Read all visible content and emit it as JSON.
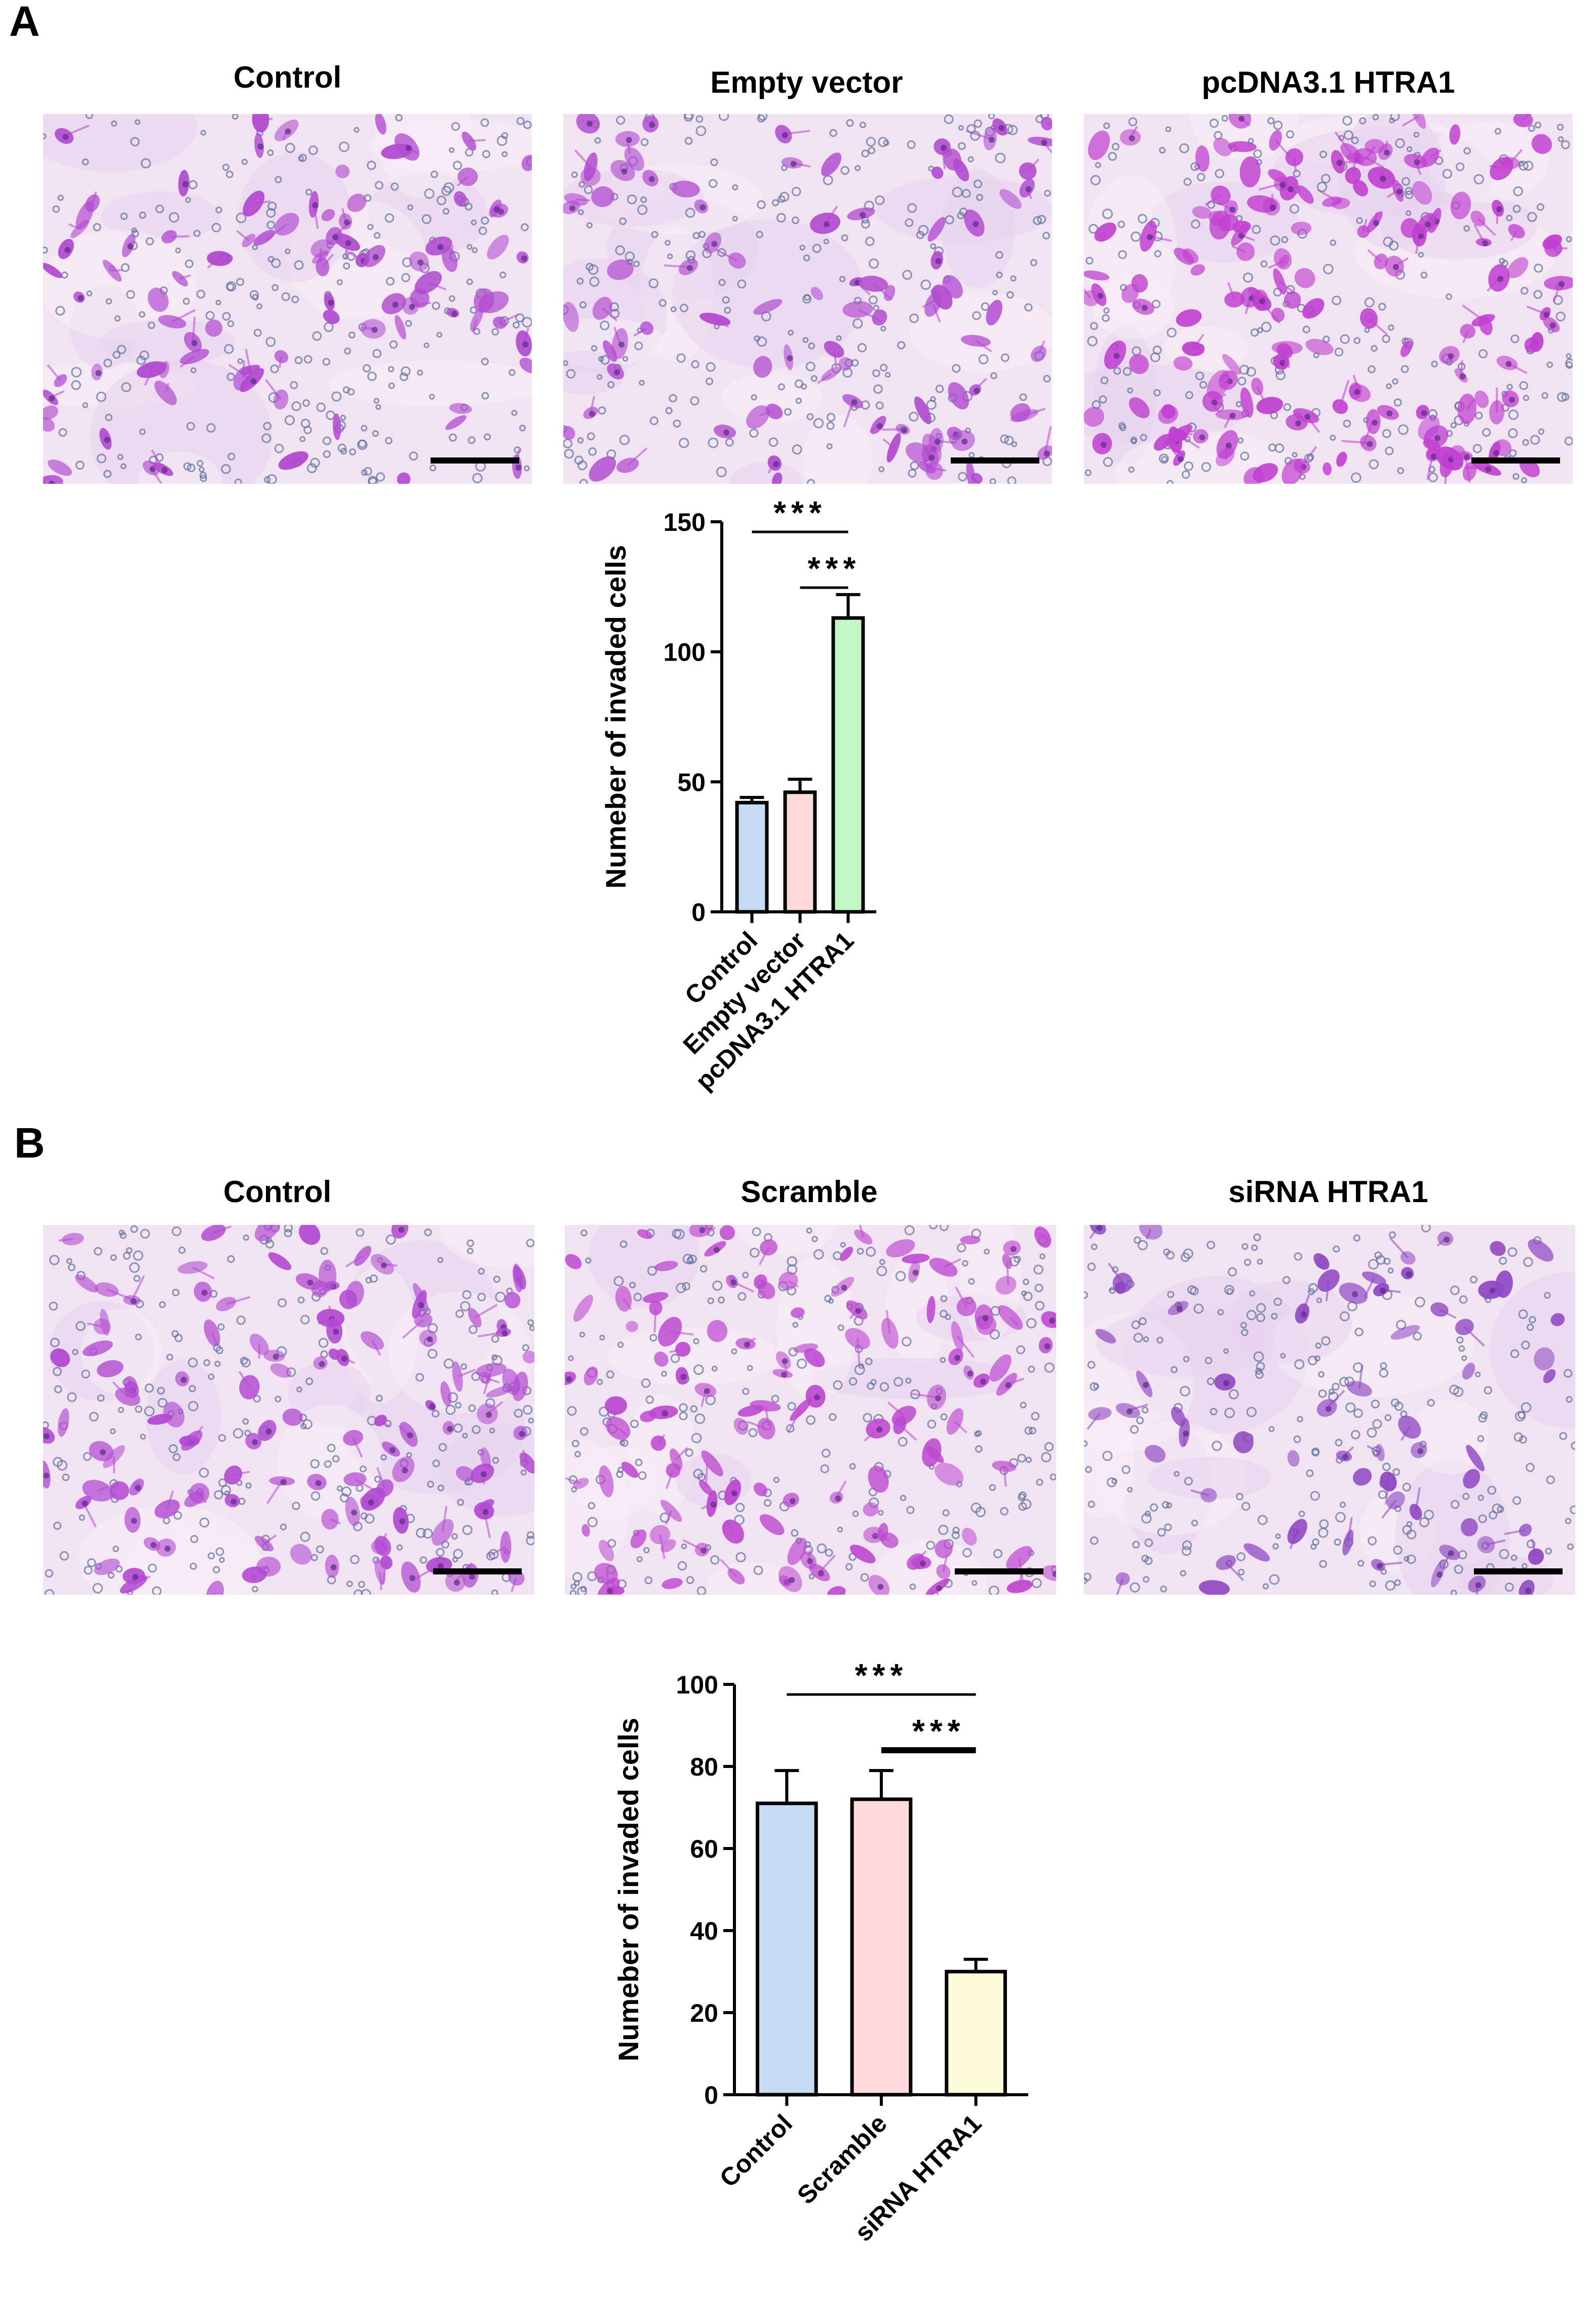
{
  "panels": [
    {
      "letter": "A",
      "images": [
        {
          "title": "Control",
          "shade": "#b14ad0",
          "density": 1.0
        },
        {
          "title": "Empty vector",
          "shade": "#b14ad0",
          "density": 1.0
        },
        {
          "title": "pcDNA3.1 HTRA1",
          "shade": "#c03fd0",
          "density": 1.8
        }
      ],
      "chart_data": {
        "type": "bar",
        "categories": [
          "Control",
          "Empty vector",
          "pcDNA3.1 HTRA1"
        ],
        "values": [
          42,
          46,
          113
        ],
        "errors": [
          2,
          5,
          9
        ],
        "colors": [
          "#c6dcf5",
          "#fcd9da",
          "#c4f7c6"
        ],
        "ylabel": "Numeber of invaded cells",
        "ylim": [
          0,
          150
        ],
        "yticks": [
          0,
          50,
          100,
          150
        ],
        "significance": [
          {
            "from": 0,
            "to": 2,
            "label": "***"
          },
          {
            "from": 1,
            "to": 2,
            "label": "***"
          }
        ]
      }
    },
    {
      "letter": "B",
      "images": [
        {
          "title": "Control",
          "shade": "#b24ad2",
          "density": 1.4
        },
        {
          "title": "Scramble",
          "shade": "#bd48d0",
          "density": 1.4
        },
        {
          "title": "siRNA HTRA1",
          "shade": "#8e46c2",
          "density": 0.7
        }
      ],
      "chart_data": {
        "type": "bar",
        "categories": [
          "Control",
          "Scramble",
          "siRNA HTRA1"
        ],
        "values": [
          71,
          72,
          30
        ],
        "errors": [
          8,
          7,
          3
        ],
        "colors": [
          "#c6dcf5",
          "#fcd9da",
          "#fdfbd8"
        ],
        "ylabel": "Numeber of invaded cells",
        "ylim": [
          0,
          100
        ],
        "yticks": [
          0,
          20,
          40,
          60,
          80,
          100
        ],
        "significance": [
          {
            "from": 0,
            "to": 2,
            "label": "***"
          },
          {
            "from": 1,
            "to": 2,
            "label": "***"
          }
        ]
      }
    }
  ]
}
